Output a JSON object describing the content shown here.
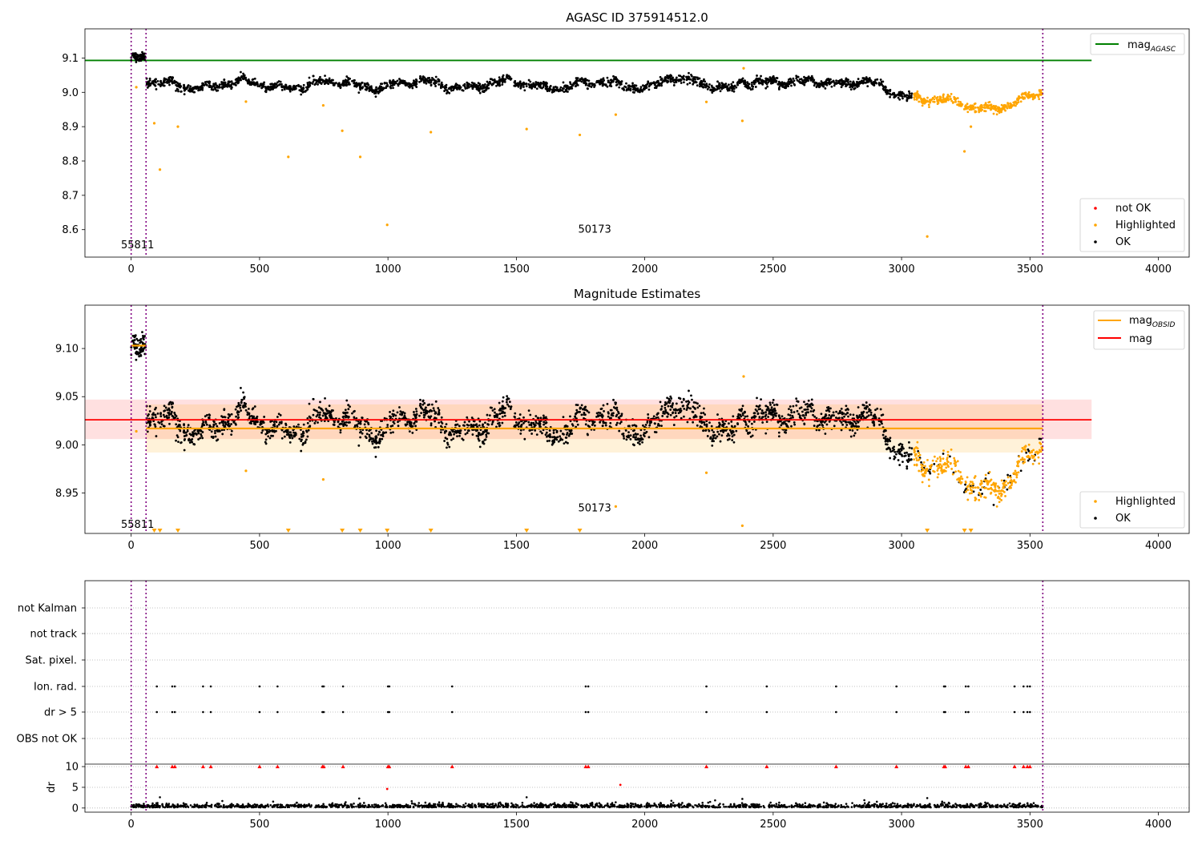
{
  "chart_data": [
    {
      "type": "scatter",
      "title": "AGASC ID 375914512.0",
      "xlim": [
        -180,
        4120
      ],
      "ylim": [
        8.52,
        9.185
      ],
      "xticks": [
        "0",
        "500",
        "1000",
        "1500",
        "2000",
        "2500",
        "3000",
        "3500",
        "4000"
      ],
      "yticks": [
        "8.6",
        "8.7",
        "8.8",
        "8.9",
        "9.0",
        "9.1"
      ],
      "hline": {
        "label": "mag_AGASC",
        "label_main": "mag",
        "label_sub": "AGASC",
        "value": 9.093,
        "x_range": [
          -180,
          3740
        ],
        "color": "#008000"
      },
      "vlines": [
        0,
        58,
        3550
      ],
      "annotations": [
        {
          "text": "55811",
          "x": 25,
          "y": 8.555
        },
        {
          "text": "50173",
          "x": 1805,
          "y": 8.6
        }
      ],
      "legend_items": [
        "not OK",
        "Highlighted",
        "OK"
      ],
      "legend_colors": [
        "#ff0000",
        "#ffa500",
        "#000000"
      ],
      "highlighted_outliers": [
        [
          20,
          9.015
        ],
        [
          90,
          8.91
        ],
        [
          112,
          8.775
        ],
        [
          182,
          8.9
        ],
        [
          447,
          8.973
        ],
        [
          612,
          8.812
        ],
        [
          748,
          8.962
        ],
        [
          822,
          8.888
        ],
        [
          892,
          8.812
        ],
        [
          997,
          8.614
        ],
        [
          1167,
          8.884
        ],
        [
          1540,
          8.893
        ],
        [
          1747,
          8.876
        ],
        [
          1887,
          8.935
        ],
        [
          2240,
          8.972
        ],
        [
          2380,
          8.917
        ],
        [
          2385,
          9.07
        ],
        [
          3100,
          8.58
        ],
        [
          3245,
          8.828
        ],
        [
          3270,
          8.9
        ]
      ]
    },
    {
      "type": "scatter",
      "title": "Magnitude Estimates",
      "xlim": [
        -180,
        4120
      ],
      "ylim": [
        8.908,
        9.145
      ],
      "xticks": [
        "0",
        "500",
        "1000",
        "1500",
        "2000",
        "2500",
        "3000",
        "3500",
        "4000"
      ],
      "yticks": [
        "8.95",
        "9.00",
        "9.05",
        "9.10"
      ],
      "mag_line": {
        "label": "mag",
        "value": 9.026,
        "band": [
          9.006,
          9.047
        ],
        "x_range": [
          -180,
          3740
        ],
        "color": "#ff0000"
      },
      "mag_obsid_line": {
        "label_main": "mag",
        "label_sub": "OBSID",
        "value": 9.017,
        "band": [
          8.992,
          9.042
        ],
        "x_range": [
          58,
          3550
        ],
        "color": "#ffa500"
      },
      "mag_obsid_early": {
        "value": 9.103,
        "x_range": [
          0,
          58
        ]
      },
      "vlines": [
        0,
        58,
        3550
      ],
      "annotations": [
        {
          "text": "55811",
          "x": 25,
          "y": 8.917
        },
        {
          "text": "50173",
          "x": 1805,
          "y": 8.934
        }
      ],
      "legend_items": [
        "Highlighted",
        "OK"
      ],
      "legend_colors": [
        "#ffa500",
        "#000000"
      ],
      "highlighted_outliers": [
        [
          20,
          9.014
        ],
        [
          447,
          8.973
        ],
        [
          748,
          8.964
        ],
        [
          1887,
          8.936
        ],
        [
          2240,
          8.971
        ],
        [
          2380,
          8.916
        ],
        [
          2385,
          9.071
        ]
      ],
      "offscale_markers_x": [
        90,
        112,
        182,
        612,
        822,
        892,
        997,
        1167,
        1540,
        1747,
        3100,
        3245,
        3270
      ]
    },
    {
      "type": "scatter",
      "title": "",
      "xlim": [
        -180,
        4120
      ],
      "xticks": [
        "0",
        "500",
        "1000",
        "1500",
        "2000",
        "2500",
        "3000",
        "3500",
        "4000"
      ],
      "flag_rows": [
        "not Kalman",
        "not track",
        "Sat. pixel.",
        "Ion. rad.",
        "dr > 5",
        "OBS not OK"
      ],
      "flag_x": [
        100,
        160,
        170,
        280,
        310,
        500,
        570,
        745,
        750,
        825,
        1000,
        1005,
        1250,
        1770,
        1780,
        2240,
        2475,
        2745,
        2980,
        3165,
        3170,
        3250,
        3260,
        3440,
        3475,
        3490,
        3500
      ],
      "dr_ylabel": "dr",
      "dr_ylim": [
        -1,
        10.6
      ],
      "dr_yticks": [
        "0",
        "5",
        "10"
      ],
      "dr_clipped_x": [
        100,
        160,
        170,
        280,
        310,
        500,
        570,
        745,
        750,
        825,
        1000,
        1005,
        1250,
        1770,
        1780,
        2240,
        2475,
        2745,
        2980,
        3165,
        3170,
        3250,
        3260,
        3440,
        3475,
        3490,
        3500
      ],
      "dr_outliers_red": [
        [
          997,
          4.6
        ],
        [
          1905,
          5.6
        ]
      ],
      "dr_outliers_black": [
        [
          112,
          2.6
        ],
        [
          355,
          1.7
        ],
        [
          888,
          2.3
        ],
        [
          1540,
          2.6
        ],
        [
          2380,
          2.2
        ],
        [
          2855,
          1.9
        ],
        [
          3100,
          2.4
        ]
      ],
      "vlines": [
        0,
        58,
        3550
      ]
    }
  ]
}
